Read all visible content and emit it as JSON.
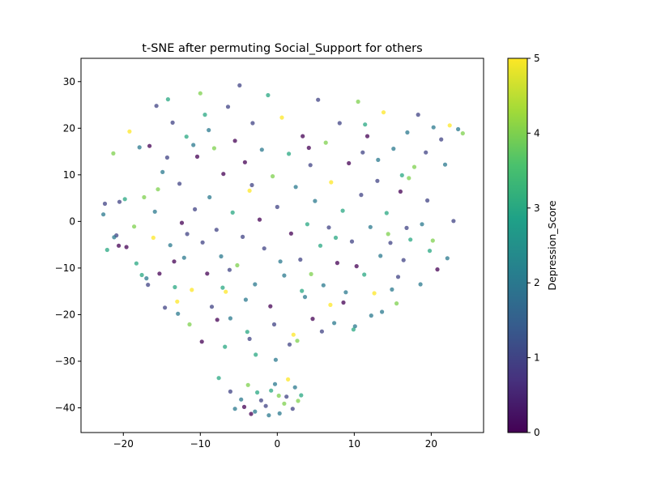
{
  "chart_data": {
    "type": "scatter",
    "title": "t-SNE after permuting Social_Support for others",
    "xlabel": "",
    "ylabel": "",
    "xlim": [
      -25.5,
      26.8
    ],
    "ylim": [
      -45.3,
      35.0
    ],
    "x_ticks": [
      -20,
      -10,
      0,
      10,
      20
    ],
    "y_ticks": [
      -40,
      -30,
      -20,
      -10,
      0,
      10,
      20,
      30
    ],
    "grid": false,
    "point_alpha": 0.75,
    "colormap": "viridis",
    "colormap_stops": [
      "#440154",
      "#46327e",
      "#365c8d",
      "#277f8e",
      "#1fa187",
      "#4ac16d",
      "#a0da39",
      "#fde725"
    ],
    "colorbar": {
      "label": "Depression_Score",
      "range": [
        0,
        5
      ],
      "ticks": [
        "0",
        "1",
        "2",
        "3",
        "4",
        "5"
      ]
    },
    "points": [
      [
        -22.6,
        1.5,
        2
      ],
      [
        -22.4,
        3.8,
        1
      ],
      [
        -22.1,
        -6.1,
        3
      ],
      [
        -21.3,
        14.6,
        4
      ],
      [
        -20.9,
        -3.0,
        1
      ],
      [
        -20.6,
        -5.2,
        0
      ],
      [
        -20.5,
        4.2,
        1
      ],
      [
        -19.6,
        -5.5,
        0
      ],
      [
        -19.2,
        19.3,
        5
      ],
      [
        -18.3,
        -9.0,
        3
      ],
      [
        -17.9,
        15.9,
        2
      ],
      [
        -17.6,
        -11.5,
        3
      ],
      [
        -17.3,
        5.2,
        4
      ],
      [
        -17.0,
        -12.2,
        2
      ],
      [
        -16.6,
        16.2,
        0
      ],
      [
        -16.1,
        -3.5,
        5
      ],
      [
        -15.7,
        24.8,
        1
      ],
      [
        -15.3,
        -11.2,
        0
      ],
      [
        -14.9,
        10.6,
        2
      ],
      [
        -14.6,
        -18.5,
        1
      ],
      [
        -14.2,
        26.2,
        3
      ],
      [
        -13.9,
        -5.1,
        2
      ],
      [
        -13.6,
        21.2,
        1
      ],
      [
        -13.3,
        -14.1,
        3
      ],
      [
        -13.0,
        -17.2,
        5
      ],
      [
        -12.7,
        8.1,
        1
      ],
      [
        -12.4,
        -0.3,
        0
      ],
      [
        -12.1,
        -7.8,
        2
      ],
      [
        -11.8,
        18.2,
        3
      ],
      [
        -11.4,
        -22.1,
        4
      ],
      [
        -11.1,
        -14.7,
        5
      ],
      [
        -10.7,
        2.6,
        1
      ],
      [
        -10.4,
        13.9,
        0
      ],
      [
        -10.0,
        27.5,
        4
      ],
      [
        -9.7,
        -4.5,
        1
      ],
      [
        -9.4,
        22.9,
        3
      ],
      [
        -9.1,
        -11.2,
        0
      ],
      [
        -8.8,
        5.2,
        2
      ],
      [
        -8.5,
        -18.3,
        1
      ],
      [
        -8.2,
        15.7,
        4
      ],
      [
        -7.9,
        -1.8,
        1
      ],
      [
        -7.6,
        -33.6,
        3
      ],
      [
        -7.3,
        -7.5,
        2
      ],
      [
        -7.0,
        10.2,
        0
      ],
      [
        -6.7,
        -15.1,
        5
      ],
      [
        -6.4,
        24.6,
        1
      ],
      [
        -6.1,
        -20.8,
        2
      ],
      [
        -5.8,
        1.9,
        3
      ],
      [
        -5.5,
        17.3,
        0
      ],
      [
        -5.2,
        -9.4,
        4
      ],
      [
        -4.9,
        29.2,
        1
      ],
      [
        -4.7,
        -38.2,
        2
      ],
      [
        -4.5,
        -3.3,
        1
      ],
      [
        -4.2,
        12.7,
        0
      ],
      [
        -3.9,
        -23.7,
        3
      ],
      [
        -3.6,
        6.6,
        5
      ],
      [
        -3.4,
        -41.3,
        0
      ],
      [
        -3.2,
        21.1,
        1
      ],
      [
        -2.9,
        -13.5,
        2
      ],
      [
        -2.6,
        -36.7,
        3
      ],
      [
        -2.3,
        0.4,
        0
      ],
      [
        -2.0,
        15.4,
        2
      ],
      [
        -1.7,
        -5.8,
        1
      ],
      [
        -1.5,
        -39.6,
        1
      ],
      [
        -1.2,
        27.1,
        3
      ],
      [
        -0.9,
        -18.2,
        0
      ],
      [
        -0.6,
        9.7,
        4
      ],
      [
        -0.3,
        -34.9,
        2
      ],
      [
        0.0,
        3.1,
        1
      ],
      [
        0.3,
        -41.2,
        2
      ],
      [
        0.6,
        22.3,
        5
      ],
      [
        0.9,
        -11.6,
        2
      ],
      [
        1.2,
        -37.6,
        1
      ],
      [
        1.5,
        14.5,
        3
      ],
      [
        1.8,
        -2.6,
        0
      ],
      [
        2.1,
        -24.3,
        5
      ],
      [
        2.4,
        7.4,
        2
      ],
      [
        2.7,
        -38.5,
        4
      ],
      [
        3.0,
        -8.2,
        1
      ],
      [
        3.3,
        18.3,
        0
      ],
      [
        3.6,
        -16.2,
        2
      ],
      [
        3.9,
        -0.6,
        3
      ],
      [
        4.3,
        12.1,
        1
      ],
      [
        4.6,
        -20.9,
        0
      ],
      [
        4.9,
        4.4,
        2
      ],
      [
        5.3,
        26.1,
        1
      ],
      [
        5.6,
        -5.2,
        3
      ],
      [
        6.0,
        -13.7,
        2
      ],
      [
        6.3,
        16.9,
        4
      ],
      [
        6.7,
        -1.3,
        1
      ],
      [
        7.0,
        8.4,
        5
      ],
      [
        7.4,
        -21.8,
        2
      ],
      [
        7.8,
        -8.9,
        0
      ],
      [
        8.1,
        21.1,
        1
      ],
      [
        8.5,
        2.3,
        3
      ],
      [
        8.9,
        -15.2,
        2
      ],
      [
        9.3,
        12.5,
        0
      ],
      [
        9.7,
        -4.3,
        1
      ],
      [
        10.1,
        -22.5,
        2
      ],
      [
        10.5,
        25.7,
        4
      ],
      [
        10.9,
        5.7,
        1
      ],
      [
        11.3,
        -11.4,
        3
      ],
      [
        11.7,
        18.3,
        0
      ],
      [
        12.1,
        -1.2,
        2
      ],
      [
        12.6,
        -15.4,
        5
      ],
      [
        13.0,
        8.7,
        1
      ],
      [
        13.4,
        -7.4,
        2
      ],
      [
        13.8,
        23.4,
        5
      ],
      [
        14.2,
        1.8,
        3
      ],
      [
        14.7,
        -4.6,
        1
      ],
      [
        15.1,
        15.6,
        2
      ],
      [
        15.5,
        -17.6,
        4
      ],
      [
        16.0,
        6.4,
        0
      ],
      [
        16.4,
        -8.3,
        1
      ],
      [
        16.9,
        19.1,
        2
      ],
      [
        17.3,
        -3.9,
        3
      ],
      [
        17.8,
        11.7,
        4
      ],
      [
        18.3,
        22.9,
        1
      ],
      [
        18.8,
        -0.6,
        2
      ],
      [
        19.3,
        14.8,
        1
      ],
      [
        19.8,
        -6.3,
        3
      ],
      [
        20.3,
        20.2,
        2
      ],
      [
        20.8,
        -10.3,
        0
      ],
      [
        21.3,
        17.6,
        1
      ],
      [
        21.8,
        12.2,
        2
      ],
      [
        22.4,
        20.6,
        5
      ],
      [
        22.9,
        0.1,
        1
      ],
      [
        23.5,
        19.8,
        2
      ],
      [
        24.1,
        18.9,
        4
      ],
      [
        -13.4,
        -8.6,
        0
      ],
      [
        -8.9,
        19.6,
        2
      ],
      [
        -6.2,
        -10.4,
        1
      ],
      [
        -2.8,
        -28.6,
        3
      ],
      [
        1.6,
        -26.4,
        1
      ],
      [
        4.4,
        -11.3,
        4
      ],
      [
        8.6,
        -17.4,
        0
      ],
      [
        11.4,
        20.8,
        3
      ],
      [
        14.9,
        -14.6,
        2
      ],
      [
        17.1,
        9.3,
        4
      ],
      [
        -15.9,
        2.1,
        2
      ],
      [
        -11.7,
        -2.7,
        1
      ],
      [
        -7.8,
        -21.1,
        0
      ],
      [
        -4.1,
        -16.8,
        2
      ],
      [
        -0.4,
        -22.1,
        1
      ],
      [
        3.2,
        -14.9,
        3
      ],
      [
        6.9,
        -17.9,
        5
      ],
      [
        10.3,
        -9.6,
        0
      ],
      [
        13.6,
        -19.4,
        2
      ],
      [
        16.8,
        -1.4,
        1
      ],
      [
        -18.6,
        -1.1,
        4
      ],
      [
        -14.3,
        13.7,
        1
      ],
      [
        -10.9,
        16.4,
        2
      ],
      [
        -7.1,
        -14.2,
        3
      ],
      [
        -3.3,
        7.8,
        1
      ],
      [
        0.4,
        -8.6,
        2
      ],
      [
        4.1,
        15.8,
        0
      ],
      [
        7.6,
        -3.5,
        3
      ],
      [
        11.1,
        14.8,
        1
      ],
      [
        14.4,
        -2.7,
        4
      ],
      [
        -5.5,
        -40.2,
        2
      ],
      [
        -3.8,
        -35.1,
        4
      ],
      [
        -2.1,
        -38.4,
        1
      ],
      [
        -0.8,
        -36.3,
        3
      ],
      [
        0.9,
        -39.1,
        4
      ],
      [
        2.3,
        -35.6,
        2
      ],
      [
        -4.3,
        -39.8,
        0
      ],
      [
        1.4,
        -33.9,
        5
      ],
      [
        -1.1,
        -41.6,
        2
      ],
      [
        3.1,
        -37.3,
        3
      ],
      [
        -6.1,
        -36.5,
        1
      ],
      [
        0.2,
        -37.4,
        4
      ],
      [
        -2.9,
        -40.8,
        2
      ],
      [
        2.0,
        -40.2,
        1
      ],
      [
        -21.2,
        -3.4,
        2
      ],
      [
        -19.8,
        4.8,
        3
      ],
      [
        -16.8,
        -13.6,
        1
      ],
      [
        -15.5,
        6.9,
        4
      ],
      [
        -12.9,
        -19.8,
        2
      ],
      [
        -9.8,
        -25.8,
        0
      ],
      [
        -6.8,
        -26.9,
        3
      ],
      [
        -3.6,
        -25.2,
        1
      ],
      [
        -0.2,
        -29.7,
        2
      ],
      [
        2.6,
        -25.6,
        4
      ],
      [
        5.8,
        -23.6,
        1
      ],
      [
        9.9,
        -23.2,
        3
      ],
      [
        12.2,
        -20.2,
        2
      ],
      [
        15.7,
        -11.9,
        1
      ],
      [
        18.6,
        -13.5,
        2
      ],
      [
        20.2,
        -4.1,
        4
      ],
      [
        22.1,
        -7.9,
        2
      ],
      [
        19.5,
        4.5,
        1
      ],
      [
        16.2,
        9.9,
        3
      ],
      [
        13.1,
        13.2,
        2
      ]
    ]
  }
}
